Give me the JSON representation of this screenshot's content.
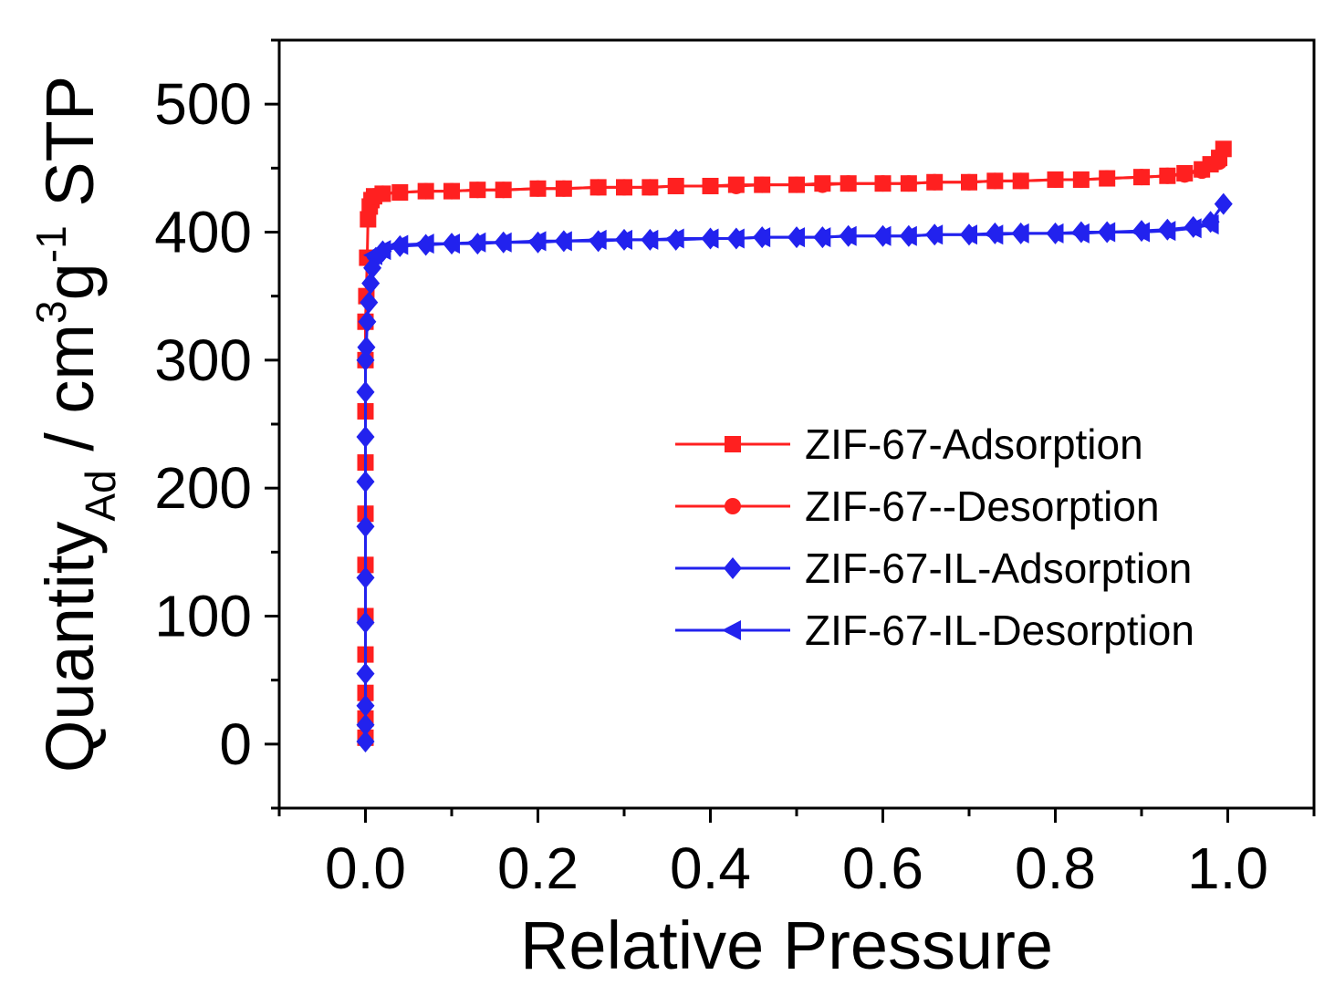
{
  "chart_data": {
    "type": "line",
    "title": "",
    "xlabel": "Relative Pressure",
    "ylabel": {
      "prefix": "Quantity",
      "subscript": "Ad",
      "unit_main": " / cm",
      "sup1": "3",
      "unit_g": "g",
      "sup2": "-1",
      "suffix": " STP"
    },
    "xlim": [
      -0.1,
      1.1
    ],
    "ylim": [
      -50,
      550
    ],
    "xticks": [
      0.0,
      0.2,
      0.4,
      0.6,
      0.8,
      1.0
    ],
    "xtick_labels": [
      "0.0",
      "0.2",
      "0.4",
      "0.6",
      "0.8",
      "1.0"
    ],
    "yticks": [
      0,
      100,
      200,
      300,
      400,
      500
    ],
    "ytick_labels": [
      "0",
      "100",
      "200",
      "300",
      "400",
      "500"
    ],
    "legend_position": "center-right",
    "series": [
      {
        "name": "ZIF-67-Adsorption",
        "color": "#ff2020",
        "marker": "square",
        "x": [
          0.0,
          0.0,
          0.0,
          0.0,
          0.0,
          0.0,
          0.0,
          0.0,
          0.0,
          0.0,
          0.0,
          0.001,
          0.002,
          0.003,
          0.005,
          0.007,
          0.01,
          0.02,
          0.04,
          0.07,
          0.1,
          0.13,
          0.16,
          0.2,
          0.23,
          0.27,
          0.3,
          0.33,
          0.36,
          0.4,
          0.43,
          0.46,
          0.5,
          0.53,
          0.56,
          0.6,
          0.63,
          0.66,
          0.7,
          0.73,
          0.76,
          0.8,
          0.83,
          0.86,
          0.9,
          0.93,
          0.95,
          0.97,
          0.98,
          0.99,
          0.995
        ],
        "y": [
          5,
          20,
          40,
          70,
          100,
          140,
          180,
          220,
          260,
          300,
          330,
          350,
          380,
          410,
          420,
          425,
          428,
          430,
          431,
          432,
          432,
          433,
          433,
          434,
          434,
          435,
          435,
          435,
          436,
          436,
          437,
          437,
          437,
          438,
          438,
          438,
          438,
          439,
          439,
          440,
          440,
          441,
          441,
          442,
          443,
          444,
          446,
          449,
          453,
          458,
          465
        ]
      },
      {
        "name": "ZIF-67--Desorption",
        "color": "#ff2020",
        "marker": "circle",
        "x": [
          0.99,
          0.97,
          0.95,
          0.93,
          0.9,
          0.86,
          0.83,
          0.8,
          0.76,
          0.73,
          0.7,
          0.66,
          0.63,
          0.6,
          0.56,
          0.53,
          0.5,
          0.46,
          0.43,
          0.4,
          0.36,
          0.33,
          0.3,
          0.27,
          0.23,
          0.2,
          0.16,
          0.13,
          0.1,
          0.07,
          0.04,
          0.02,
          0.01
        ],
        "y": [
          455,
          448,
          445,
          444,
          443,
          442,
          441,
          441,
          440,
          440,
          439,
          439,
          438,
          438,
          438,
          437,
          437,
          437,
          436,
          436,
          436,
          435,
          435,
          435,
          434,
          434,
          433,
          433,
          432,
          432,
          431,
          430,
          428
        ]
      },
      {
        "name": "ZIF-67-IL-Adsorption",
        "color": "#2222ee",
        "marker": "diamond",
        "x": [
          0.0,
          0.0,
          0.0,
          0.0,
          0.0,
          0.0,
          0.0,
          0.0,
          0.0,
          0.0,
          0.0,
          0.001,
          0.002,
          0.004,
          0.006,
          0.008,
          0.012,
          0.02,
          0.04,
          0.07,
          0.1,
          0.13,
          0.16,
          0.2,
          0.23,
          0.27,
          0.3,
          0.33,
          0.36,
          0.4,
          0.43,
          0.46,
          0.5,
          0.53,
          0.56,
          0.6,
          0.63,
          0.66,
          0.7,
          0.73,
          0.76,
          0.8,
          0.83,
          0.86,
          0.9,
          0.93,
          0.96,
          0.98,
          0.995
        ],
        "y": [
          2,
          15,
          30,
          55,
          95,
          130,
          170,
          205,
          240,
          275,
          300,
          310,
          330,
          345,
          360,
          372,
          380,
          385,
          389,
          390,
          391,
          391,
          392,
          392,
          393,
          393,
          394,
          394,
          394,
          395,
          395,
          396,
          396,
          396,
          397,
          397,
          397,
          398,
          398,
          399,
          399,
          399,
          400,
          400,
          401,
          402,
          404,
          408,
          422
        ]
      },
      {
        "name": "ZIF-67-IL-Desorption",
        "color": "#2222ee",
        "marker": "left-triangle",
        "x": [
          0.98,
          0.96,
          0.93,
          0.9,
          0.86,
          0.83,
          0.8,
          0.76,
          0.73,
          0.7,
          0.66,
          0.63,
          0.6,
          0.56,
          0.53,
          0.5,
          0.46,
          0.43,
          0.4,
          0.36,
          0.33,
          0.3,
          0.27,
          0.23,
          0.2,
          0.16,
          0.13,
          0.1,
          0.07,
          0.04,
          0.02,
          0.01
        ],
        "y": [
          406,
          403,
          401,
          400,
          400,
          399,
          399,
          399,
          398,
          398,
          398,
          397,
          397,
          397,
          396,
          396,
          396,
          395,
          395,
          395,
          394,
          394,
          394,
          393,
          393,
          392,
          392,
          391,
          391,
          390,
          386,
          382
        ]
      }
    ]
  }
}
